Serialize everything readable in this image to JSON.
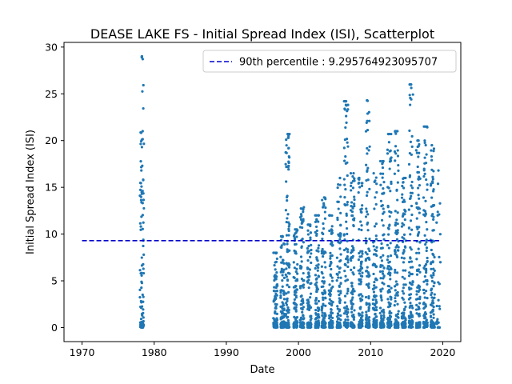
{
  "chart_data": {
    "type": "scatter",
    "title": "DEASE LAKE FS - Initial Spread Index (ISI), Scatterplot",
    "xlabel": "Date",
    "ylabel": "Initial Spread Index (ISI)",
    "xlim": [
      1967.5,
      2022.5
    ],
    "ylim": [
      -1.5,
      30.5
    ],
    "x_ticks": [
      1970,
      1980,
      1990,
      2000,
      2010,
      2020
    ],
    "y_ticks": [
      0,
      5,
      10,
      15,
      20,
      25,
      30
    ],
    "grid": false,
    "legend_position": "top-right",
    "point_color": "#1f77b4",
    "reference_line": {
      "label": "90th percentile : 9.295764923095707",
      "value": 9.295764923095707,
      "x_range": [
        1970,
        2019.5
      ],
      "style": "dashed",
      "color": "#0000cd"
    },
    "series": [
      {
        "year_clusters": [
          {
            "x": 1978.3,
            "max": 29.0,
            "n": 80
          },
          {
            "x": 1996.8,
            "max": 8.0,
            "n": 70
          },
          {
            "x": 1997.8,
            "max": 10.0,
            "n": 75
          },
          {
            "x": 1998.5,
            "max": 20.7,
            "n": 90
          },
          {
            "x": 1999.6,
            "max": 10.5,
            "n": 85
          },
          {
            "x": 2000.5,
            "max": 13.0,
            "n": 80
          },
          {
            "x": 2001.5,
            "max": 11.0,
            "n": 85
          },
          {
            "x": 2002.6,
            "max": 12.0,
            "n": 85
          },
          {
            "x": 2003.5,
            "max": 14.0,
            "n": 85
          },
          {
            "x": 2004.5,
            "max": 12.0,
            "n": 85
          },
          {
            "x": 2005.6,
            "max": 16.0,
            "n": 85
          },
          {
            "x": 2006.6,
            "max": 24.2,
            "n": 90
          },
          {
            "x": 2007.5,
            "max": 16.5,
            "n": 85
          },
          {
            "x": 2008.6,
            "max": 16.0,
            "n": 85
          },
          {
            "x": 2009.6,
            "max": 24.3,
            "n": 90
          },
          {
            "x": 2010.6,
            "max": 16.5,
            "n": 85
          },
          {
            "x": 2011.6,
            "max": 17.8,
            "n": 85
          },
          {
            "x": 2012.6,
            "max": 20.7,
            "n": 90
          },
          {
            "x": 2013.6,
            "max": 21.0,
            "n": 90
          },
          {
            "x": 2014.6,
            "max": 16.0,
            "n": 85
          },
          {
            "x": 2015.6,
            "max": 26.0,
            "n": 90
          },
          {
            "x": 2016.6,
            "max": 20.0,
            "n": 90
          },
          {
            "x": 2017.6,
            "max": 21.5,
            "n": 90
          },
          {
            "x": 2018.6,
            "max": 19.5,
            "n": 90
          },
          {
            "x": 2019.4,
            "max": 16.8,
            "n": 20
          }
        ],
        "highlight_points": [
          {
            "x": 1978.3,
            "y": 29.0
          },
          {
            "x": 1978.4,
            "y": 21.0
          },
          {
            "x": 1978.3,
            "y": 19.3
          },
          {
            "x": 1978.35,
            "y": 17.3
          },
          {
            "x": 1998.5,
            "y": 20.7
          },
          {
            "x": 1998.6,
            "y": 20.3
          },
          {
            "x": 2006.5,
            "y": 24.2
          },
          {
            "x": 2009.5,
            "y": 24.3
          },
          {
            "x": 2012.5,
            "y": 20.7
          },
          {
            "x": 2013.4,
            "y": 21.0
          },
          {
            "x": 2015.5,
            "y": 26.0
          },
          {
            "x": 2016.5,
            "y": 20.0
          },
          {
            "x": 2017.4,
            "y": 21.5
          },
          {
            "x": 2017.5,
            "y": 20.0
          },
          {
            "x": 2018.5,
            "y": 19.5
          },
          {
            "x": 2019.4,
            "y": 16.8
          },
          {
            "x": 2019.3,
            "y": 12.0
          }
        ]
      }
    ]
  }
}
